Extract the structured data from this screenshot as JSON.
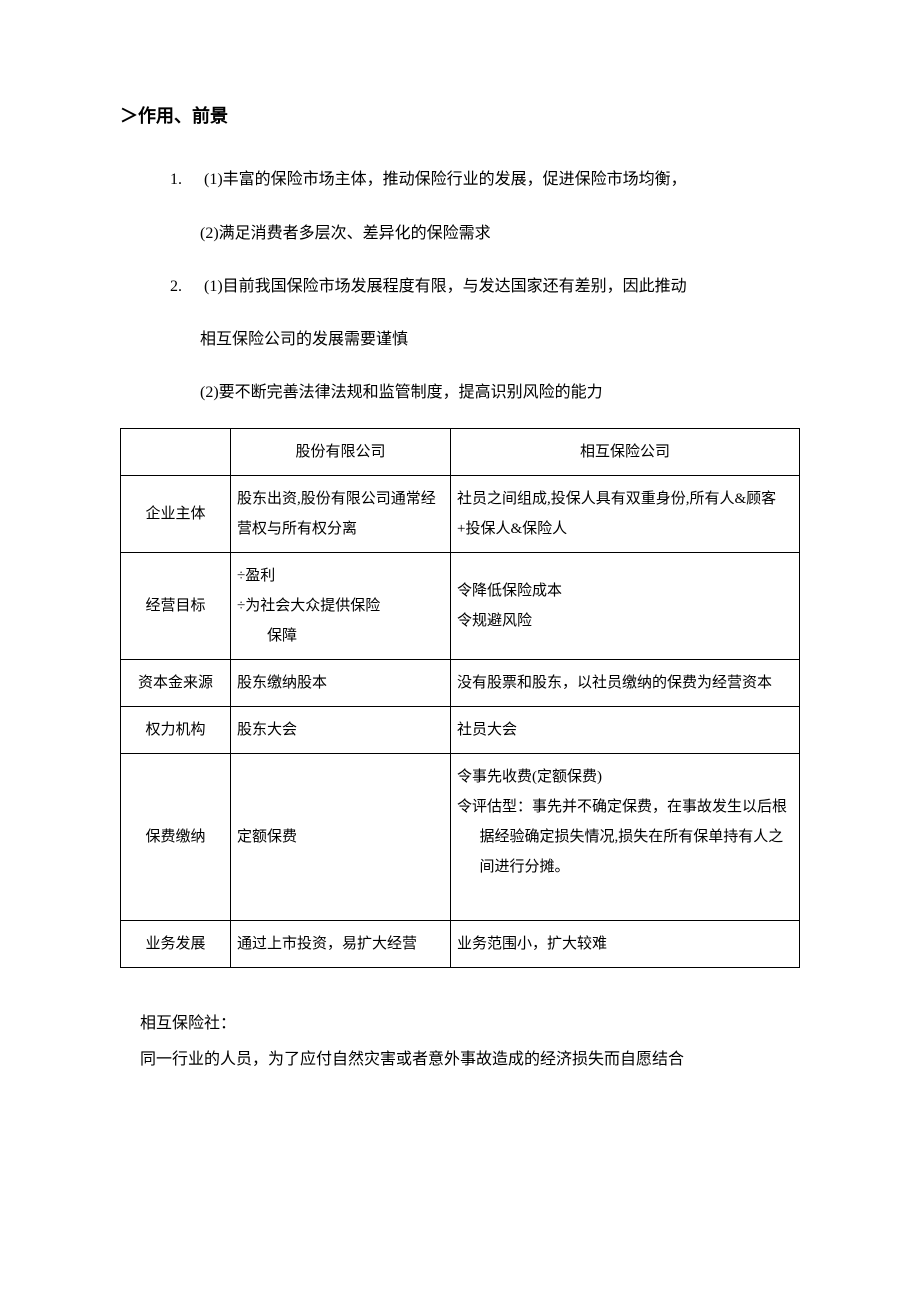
{
  "heading": "＞作用、前景",
  "points": {
    "p1": {
      "num": "1.",
      "line1": "(1)丰富的保险市场主体，推动保险行业的发展，促进保险市场均衡，",
      "line2": "(2)满足消费者多层次、差异化的保险需求"
    },
    "p2": {
      "num": "2.",
      "line1": "(1)目前我国保险市场发展程度有限，与发达国家还有差别，因此推动",
      "line1b": "相互保险公司的发展需要谨慎",
      "line2": "(2)要不断完善法律法规和监管制度，提高识别风险的能力"
    }
  },
  "table": {
    "header": {
      "col0": "",
      "col1": "股份有限公司",
      "col2": "相互保险公司"
    },
    "rows": {
      "r1": {
        "label": "企业主体",
        "c1": "股东出资,股份有限公司通常经营权与所有权分离",
        "c2": "社员之间组成,投保人具有双重身份,所有人&顾客+投保人&保险人"
      },
      "r2": {
        "label": "经营目标",
        "c1_l1": "÷盈利",
        "c1_l2": "÷为社会大众提供保险",
        "c1_l3": "保障",
        "c2_l1": "令降低保险成本",
        "c2_l2": "令规避风险"
      },
      "r3": {
        "label": "资本金来源",
        "c1": "股东缴纳股本",
        "c2": "没有股票和股东，以社员缴纳的保费为经营资本"
      },
      "r4": {
        "label": "权力机构",
        "c1": "股东大会",
        "c2": "社员大会"
      },
      "r5": {
        "label": "保费缴纳",
        "c1": "定额保费",
        "c2_l1": "令事先收费(定额保费)",
        "c2_l2": "令评估型：事先并不确定保费，在事故发生以后根据经验确定损失情况,损失在所有保单持有人之间进行分摊。"
      },
      "r6": {
        "label": "业务发展",
        "c1": "通过上市投资，易扩大经营",
        "c2": "业务范围小，扩大较难"
      }
    }
  },
  "footer": {
    "line1": "相互保险社：",
    "line2": "同一行业的人员，为了应付自然灾害或者意外事故造成的经济损失而自愿结合"
  }
}
